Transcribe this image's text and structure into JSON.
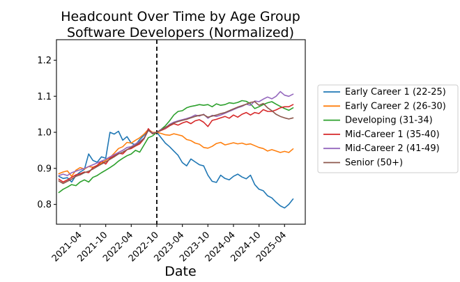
{
  "chart_data": {
    "type": "line",
    "title": "Headcount Over Time by Age Group",
    "subtitle": "Software Developers (Normalized)",
    "xlabel": "Date",
    "ylabel": "",
    "legend_position": "right",
    "grid": false,
    "ylim": [
      0.745,
      1.257
    ],
    "y_ticks": [
      "0.8",
      "0.9",
      "1.0",
      "1.1",
      "1.2"
    ],
    "y_tick_values": [
      0.8,
      0.9,
      1.0,
      1.1,
      1.2
    ],
    "x_tick_labels": [
      "2021-04",
      "2021-10",
      "2022-04",
      "2022-10",
      "2023-04",
      "2023-10",
      "2024-04",
      "2024-10",
      "2025-04"
    ],
    "vline": {
      "x": "2022-10",
      "style": "dashed",
      "color": "#000000"
    },
    "x": [
      "2020-11",
      "2020-12",
      "2021-01",
      "2021-02",
      "2021-03",
      "2021-04",
      "2021-05",
      "2021-06",
      "2021-07",
      "2021-08",
      "2021-09",
      "2021-10",
      "2021-11",
      "2021-12",
      "2022-01",
      "2022-02",
      "2022-03",
      "2022-04",
      "2022-05",
      "2022-06",
      "2022-07",
      "2022-08",
      "2022-09",
      "2022-10",
      "2022-11",
      "2022-12",
      "2023-01",
      "2023-02",
      "2023-03",
      "2023-04",
      "2023-05",
      "2023-06",
      "2023-07",
      "2023-08",
      "2023-09",
      "2023-10",
      "2023-11",
      "2023-12",
      "2024-01",
      "2024-02",
      "2024-03",
      "2024-04",
      "2024-05",
      "2024-06",
      "2024-07",
      "2024-08",
      "2024-09",
      "2024-10",
      "2024-11",
      "2024-12",
      "2025-01",
      "2025-02",
      "2025-03",
      "2025-04",
      "2025-05",
      "2025-06"
    ],
    "series": [
      {
        "name": "Early Career 1 (22-25)",
        "color": "#1f77b4",
        "values": [
          0.878,
          0.872,
          0.874,
          0.862,
          0.88,
          0.89,
          0.897,
          0.94,
          0.922,
          0.917,
          0.932,
          0.928,
          1.0,
          0.995,
          1.003,
          0.978,
          0.988,
          0.97,
          0.965,
          0.98,
          0.992,
          1.006,
          0.997,
          1.0,
          0.985,
          0.97,
          0.96,
          0.948,
          0.936,
          0.916,
          0.907,
          0.926,
          0.918,
          0.91,
          0.907,
          0.881,
          0.864,
          0.861,
          0.881,
          0.872,
          0.868,
          0.878,
          0.884,
          0.876,
          0.871,
          0.881,
          0.855,
          0.842,
          0.838,
          0.824,
          0.818,
          0.806,
          0.796,
          0.79,
          0.8,
          0.815
        ]
      },
      {
        "name": "Early Career 2 (26-30)",
        "color": "#ff7f0e",
        "values": [
          0.885,
          0.89,
          0.893,
          0.878,
          0.895,
          0.902,
          0.898,
          0.905,
          0.903,
          0.908,
          0.915,
          0.922,
          0.93,
          0.942,
          0.955,
          0.96,
          0.972,
          0.97,
          0.978,
          0.985,
          0.995,
          1.008,
          1.0,
          1.0,
          0.997,
          0.993,
          0.992,
          0.996,
          0.993,
          0.99,
          0.98,
          0.977,
          0.97,
          0.967,
          0.958,
          0.956,
          0.961,
          0.969,
          0.972,
          0.965,
          0.968,
          0.971,
          0.968,
          0.97,
          0.966,
          0.968,
          0.963,
          0.958,
          0.955,
          0.948,
          0.952,
          0.948,
          0.944,
          0.947,
          0.944,
          0.954
        ]
      },
      {
        "name": "Developing (31-34)",
        "color": "#2ca02c",
        "values": [
          0.833,
          0.842,
          0.848,
          0.855,
          0.852,
          0.862,
          0.868,
          0.862,
          0.875,
          0.88,
          0.888,
          0.895,
          0.902,
          0.91,
          0.92,
          0.928,
          0.935,
          0.94,
          0.95,
          0.945,
          0.965,
          0.985,
          0.99,
          1.0,
          1.008,
          1.018,
          1.032,
          1.048,
          1.058,
          1.06,
          1.068,
          1.072,
          1.074,
          1.077,
          1.075,
          1.077,
          1.071,
          1.079,
          1.075,
          1.077,
          1.082,
          1.08,
          1.083,
          1.088,
          1.086,
          1.079,
          1.066,
          1.071,
          1.077,
          1.082,
          1.085,
          1.078,
          1.072,
          1.066,
          1.061,
          1.068
        ]
      },
      {
        "name": "Mid-Career 1 (35-40)",
        "color": "#d62728",
        "values": [
          0.87,
          0.862,
          0.868,
          0.875,
          0.882,
          0.885,
          0.89,
          0.888,
          0.902,
          0.908,
          0.92,
          0.912,
          0.928,
          0.935,
          0.942,
          0.94,
          0.952,
          0.955,
          0.962,
          0.968,
          0.982,
          1.01,
          0.996,
          1.0,
          1.005,
          1.01,
          1.018,
          1.024,
          1.02,
          1.026,
          1.03,
          1.024,
          1.032,
          1.035,
          1.028,
          1.016,
          1.033,
          1.036,
          1.04,
          1.044,
          1.039,
          1.048,
          1.042,
          1.05,
          1.055,
          1.048,
          1.055,
          1.052,
          1.063,
          1.058,
          1.058,
          1.062,
          1.068,
          1.071,
          1.071,
          1.077
        ]
      },
      {
        "name": "Mid-Career 2 (41-49)",
        "color": "#9467bd",
        "values": [
          0.88,
          0.884,
          0.88,
          0.888,
          0.892,
          0.896,
          0.9,
          0.905,
          0.91,
          0.915,
          0.92,
          0.925,
          0.932,
          0.938,
          0.944,
          0.95,
          0.958,
          0.96,
          0.968,
          0.975,
          0.984,
          1.005,
          0.998,
          1.0,
          1.008,
          1.012,
          1.022,
          1.028,
          1.032,
          1.035,
          1.038,
          1.042,
          1.048,
          1.045,
          1.05,
          1.039,
          1.047,
          1.044,
          1.048,
          1.053,
          1.058,
          1.063,
          1.068,
          1.072,
          1.078,
          1.075,
          1.087,
          1.085,
          1.092,
          1.098,
          1.093,
          1.1,
          1.113,
          1.103,
          1.1,
          1.106
        ]
      },
      {
        "name": "Senior (50+)",
        "color": "#8c564b",
        "values": [
          0.865,
          0.858,
          0.864,
          0.87,
          0.878,
          0.882,
          0.888,
          0.892,
          0.898,
          0.905,
          0.912,
          0.918,
          0.925,
          0.932,
          0.94,
          0.945,
          0.952,
          0.958,
          0.964,
          0.972,
          0.982,
          1.006,
          0.996,
          1.0,
          1.006,
          1.014,
          1.02,
          1.026,
          1.03,
          1.033,
          1.036,
          1.04,
          1.044,
          1.047,
          1.049,
          1.042,
          1.045,
          1.048,
          1.052,
          1.055,
          1.06,
          1.065,
          1.07,
          1.074,
          1.078,
          1.083,
          1.085,
          1.075,
          1.08,
          1.068,
          1.06,
          1.05,
          1.044,
          1.04,
          1.037,
          1.04
        ]
      }
    ]
  }
}
